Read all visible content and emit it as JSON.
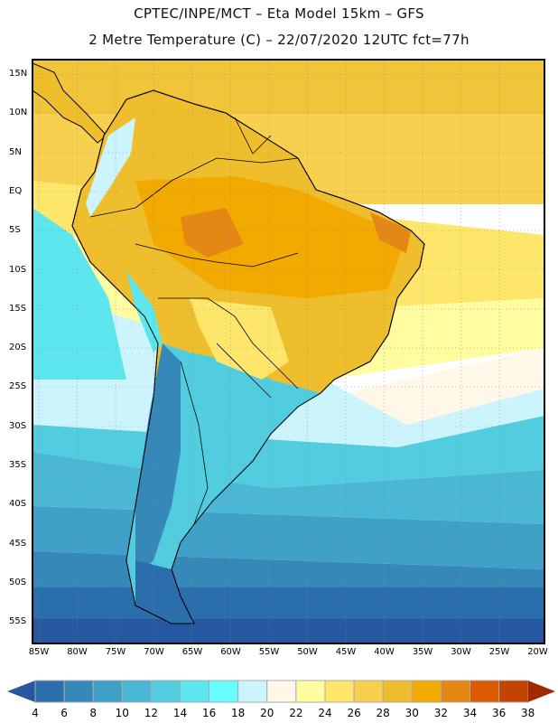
{
  "header": {
    "line1": "CPTEC/INPE/MCT –  Eta Model 15km – GFS",
    "line2": "2 Metre Temperature (C) – 22/07/2020 12UTC fct=77h"
  },
  "axes": {
    "lat_labels": [
      "15N",
      "10N",
      "5N",
      "EQ",
      "5S",
      "10S",
      "15S",
      "20S",
      "25S",
      "30S",
      "35S",
      "40S",
      "45S",
      "50S",
      "55S"
    ],
    "lon_labels": [
      "85W",
      "80W",
      "75W",
      "70W",
      "65W",
      "60W",
      "55W",
      "50W",
      "45W",
      "40W",
      "35W",
      "30W",
      "25W",
      "20W"
    ]
  },
  "colorbar": {
    "labels": [
      "4",
      "6",
      "8",
      "10",
      "12",
      "14",
      "16",
      "18",
      "20",
      "22",
      "24",
      "26",
      "28",
      "30",
      "32",
      "34",
      "36",
      "38"
    ],
    "colors": [
      "#2a6eab",
      "#3688b8",
      "#3fa0c8",
      "#4ab8d5",
      "#52cde0",
      "#5ee6ef",
      "#66fefe",
      "#ccf4fd",
      "#fff8e8",
      "#fffd9f",
      "#fde66a",
      "#f6d04e",
      "#efbe2c",
      "#f2a900",
      "#e58714",
      "#dc5a00",
      "#c24400"
    ],
    "under_color": "#2757a0",
    "over_color": "#a22a00"
  }
}
